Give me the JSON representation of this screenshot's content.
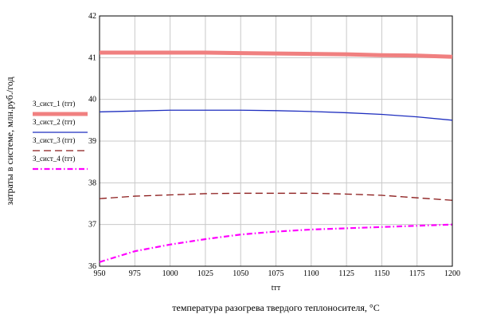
{
  "chart_data": {
    "type": "line",
    "title": "",
    "xlabel": "температура разогрева твердого теплоносителя, °С",
    "x_var": "tтт",
    "ylabel": "затраты в системе, млн.руб./год",
    "xlim": [
      950,
      1200
    ],
    "ylim": [
      36,
      42
    ],
    "x_ticks": [
      950,
      975,
      1000,
      1025,
      1050,
      1075,
      1100,
      1125,
      1150,
      1175,
      1200
    ],
    "y_ticks": [
      36,
      37,
      38,
      39,
      40,
      41,
      42
    ],
    "grid": true,
    "legend": "left",
    "x": [
      950,
      975,
      1000,
      1025,
      1050,
      1075,
      1100,
      1125,
      1150,
      1175,
      1200
    ],
    "series": [
      {
        "name": "З_сист_1 (tтт)",
        "color": "#f08080",
        "style": "solid-thick",
        "values": [
          41.12,
          41.12,
          41.12,
          41.12,
          41.11,
          41.1,
          41.09,
          41.08,
          41.06,
          41.05,
          41.02
        ]
      },
      {
        "name": "З_сист_2 (tтт)",
        "color": "#1f2fbf",
        "style": "solid",
        "values": [
          39.7,
          39.72,
          39.74,
          39.74,
          39.74,
          39.73,
          39.71,
          39.68,
          39.64,
          39.58,
          39.5
        ]
      },
      {
        "name": "З_сист_3 (tтт)",
        "color": "#8b1a1a",
        "style": "dashed",
        "values": [
          37.62,
          37.68,
          37.71,
          37.74,
          37.75,
          37.75,
          37.75,
          37.73,
          37.7,
          37.64,
          37.58
        ]
      },
      {
        "name": "З_сист_4 (tтт)",
        "color": "#ff00ff",
        "style": "dashdot-thick",
        "values": [
          36.1,
          36.36,
          36.52,
          36.65,
          36.76,
          36.83,
          36.88,
          36.91,
          36.94,
          36.97,
          37.0
        ]
      }
    ]
  }
}
